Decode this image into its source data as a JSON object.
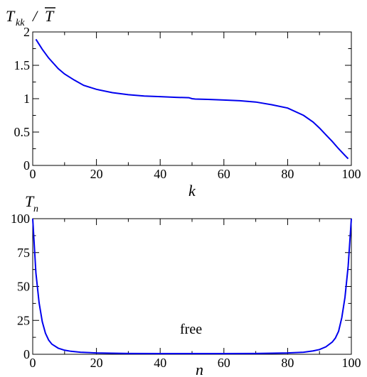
{
  "chart_data": [
    {
      "type": "line",
      "ylabel": {
        "main": "T",
        "sub": "kk",
        "divider": "/",
        "denominator": "T"
      },
      "xlabel": "k",
      "xlim": [
        0,
        100
      ],
      "ylim": [
        0,
        2
      ],
      "xticks": [
        "0",
        "20",
        "40",
        "60",
        "80",
        "100"
      ],
      "yticks": [
        "0",
        "0.5",
        "1",
        "1.5",
        "2"
      ],
      "series": [
        {
          "color": "#0000ee",
          "x": [
            1,
            3,
            5,
            8,
            10,
            13,
            16,
            20,
            25,
            30,
            35,
            40,
            45,
            49,
            50,
            51,
            55,
            60,
            65,
            70,
            75,
            80,
            85,
            88,
            90,
            92,
            94,
            96,
            98,
            99
          ],
          "y": [
            1.89,
            1.74,
            1.61,
            1.45,
            1.37,
            1.28,
            1.2,
            1.14,
            1.09,
            1.06,
            1.04,
            1.03,
            1.02,
            1.015,
            1.0,
            0.995,
            0.99,
            0.98,
            0.97,
            0.95,
            0.91,
            0.86,
            0.75,
            0.65,
            0.56,
            0.46,
            0.36,
            0.25,
            0.15,
            0.1
          ]
        }
      ]
    },
    {
      "type": "line",
      "ylabel": {
        "main": "T",
        "sub": "n"
      },
      "xlabel": "n",
      "xlim": [
        0,
        100
      ],
      "ylim": [
        0,
        100
      ],
      "xticks": [
        "0",
        "20",
        "40",
        "60",
        "80",
        "100"
      ],
      "yticks": [
        "0",
        "25",
        "50",
        "75",
        "100"
      ],
      "annotation": "free",
      "series": [
        {
          "color": "#0000ee",
          "x": [
            0,
            1,
            2,
            3,
            4,
            5,
            6,
            8,
            10,
            12,
            15,
            20,
            25,
            30,
            40,
            50,
            60,
            70,
            75,
            80,
            85,
            88,
            90,
            92,
            94,
            95,
            96,
            97,
            98,
            99,
            100
          ],
          "y": [
            100,
            60,
            38,
            24,
            15.5,
            10.5,
            7.5,
            4.5,
            3,
            2.2,
            1.5,
            1,
            0.8,
            0.6,
            0.5,
            0.5,
            0.5,
            0.6,
            0.8,
            1,
            1.5,
            2.5,
            3.5,
            5.5,
            9,
            12,
            17,
            27,
            42,
            65,
            100
          ]
        }
      ]
    }
  ]
}
